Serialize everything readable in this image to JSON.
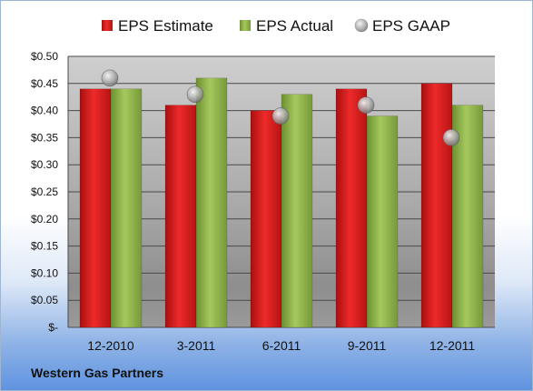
{
  "chart_data": {
    "type": "bar",
    "title": "",
    "xlabel": "",
    "ylabel": "",
    "categories": [
      "12-2010",
      "3-2011",
      "6-2011",
      "9-2011",
      "12-2011"
    ],
    "series": [
      {
        "name": "EPS Estimate",
        "kind": "bar",
        "color": "#d81e1e",
        "values": [
          0.44,
          0.41,
          0.4,
          0.44,
          0.45
        ]
      },
      {
        "name": "EPS Actual",
        "kind": "bar",
        "color": "#8db34a",
        "values": [
          0.44,
          0.46,
          0.43,
          0.39,
          0.41
        ]
      },
      {
        "name": "EPS GAAP",
        "kind": "marker",
        "color": "#b7b7b7",
        "values": [
          0.46,
          0.43,
          0.39,
          0.41,
          0.35
        ]
      }
    ],
    "ylim": [
      0,
      0.5
    ],
    "yticks": [
      0,
      0.05,
      0.1,
      0.15,
      0.2,
      0.25,
      0.3,
      0.35,
      0.4,
      0.45,
      0.5
    ],
    "ytick_labels": [
      "$-",
      "$0.05",
      "$0.10",
      "$0.15",
      "$0.20",
      "$0.25",
      "$0.30",
      "$0.35",
      "$0.40",
      "$0.45",
      "$0.50"
    ],
    "grid": true,
    "legend_position": "top-center"
  },
  "footer": {
    "company": "Western Gas Partners"
  }
}
